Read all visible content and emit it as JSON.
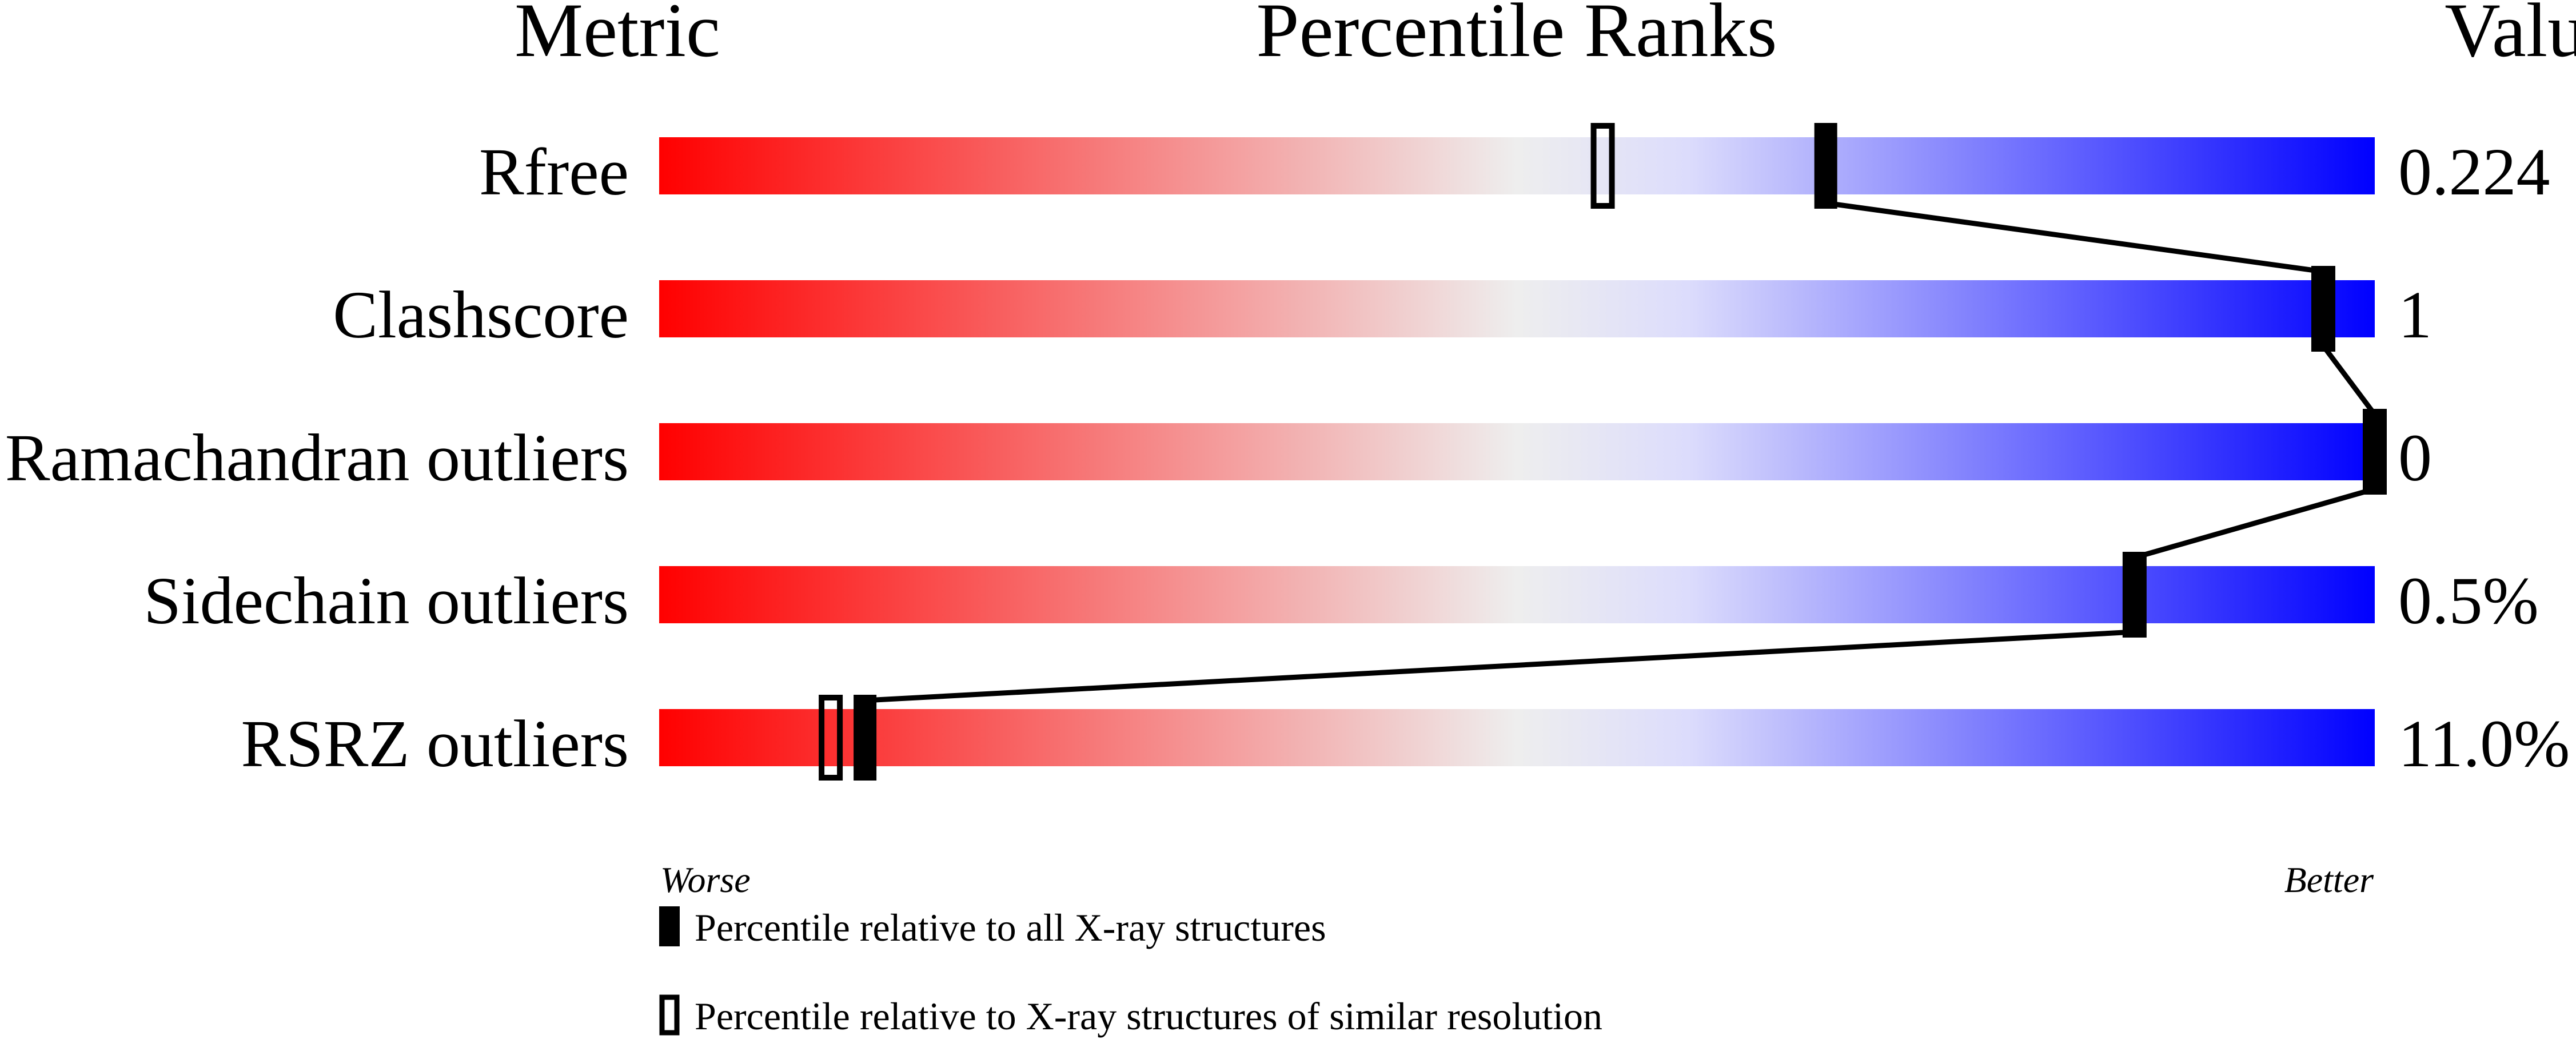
{
  "chart_data": {
    "type": "percentile-slider",
    "headers": {
      "metric": "Metric",
      "ranks": "Percentile Ranks",
      "value": "Value"
    },
    "xlim": [
      0,
      100
    ],
    "axis_labels": {
      "worse": "Worse",
      "better": "Better"
    },
    "colors": {
      "worse": "#ff0000",
      "middle": "#eeeeee",
      "better": "#0000ff",
      "marker": "#000000"
    },
    "metrics": [
      {
        "name": "Rfree",
        "value": "0.224",
        "percentile_all": 68,
        "percentile_similar": 55
      },
      {
        "name": "Clashscore",
        "value": "1",
        "percentile_all": 97,
        "percentile_similar": 97
      },
      {
        "name": "Ramachandran outliers",
        "value": "0",
        "percentile_all": 100,
        "percentile_similar": 100
      },
      {
        "name": "Sidechain outliers",
        "value": "0.5%",
        "percentile_all": 86,
        "percentile_similar": 86
      },
      {
        "name": "RSRZ outliers",
        "value": "11.0%",
        "percentile_all": 12,
        "percentile_similar": 10
      }
    ],
    "legend": [
      {
        "marker": "filled",
        "label": "Percentile relative to all X-ray structures"
      },
      {
        "marker": "open",
        "label": "Percentile relative to X-ray structures of similar resolution"
      }
    ]
  }
}
